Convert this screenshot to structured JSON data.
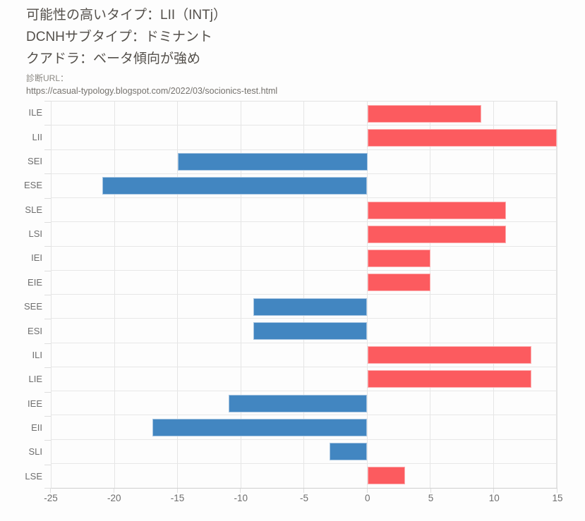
{
  "header": {
    "result_type_line": "可能性の高いタイプ：LII（INTj）",
    "dcnh_subtype_line": "DCNHサブタイプ：ドミナント",
    "quadra_line": "クアドラ：ベータ傾向が強め",
    "url_label": "診断URL：",
    "url_value": "https://casual-typology.blogspot.com/2022/03/socionics-test.html"
  },
  "colors": {
    "page_bg": "#fdfdfd",
    "heading_text": "#54504b",
    "muted_text": "#8a8781",
    "axis_text": "#6e6e6e",
    "grid": "#e5e5e5"
  },
  "chart_data": {
    "type": "bar",
    "orientation": "horizontal",
    "title": "",
    "xlabel": "",
    "ylabel": "",
    "categories": [
      "ILE",
      "LII",
      "SEI",
      "ESE",
      "SLE",
      "LSI",
      "IEI",
      "EIE",
      "SEE",
      "ESI",
      "ILI",
      "LIE",
      "IEE",
      "EII",
      "SLI",
      "LSE"
    ],
    "values": [
      9,
      15,
      -15,
      -21,
      11,
      11,
      5,
      5,
      -9,
      -9,
      13,
      13,
      -11,
      -17,
      -3,
      3
    ],
    "xlim": [
      -25,
      15
    ],
    "x_ticks": [
      -25,
      -20,
      -15,
      -10,
      -5,
      0,
      5,
      10,
      15
    ],
    "grid": true,
    "legend": "none",
    "positive_color": "#fc5b5f",
    "negative_color": "#4286c1",
    "positive_border": "#fdadaf",
    "negative_border": "#a5c4e1"
  }
}
